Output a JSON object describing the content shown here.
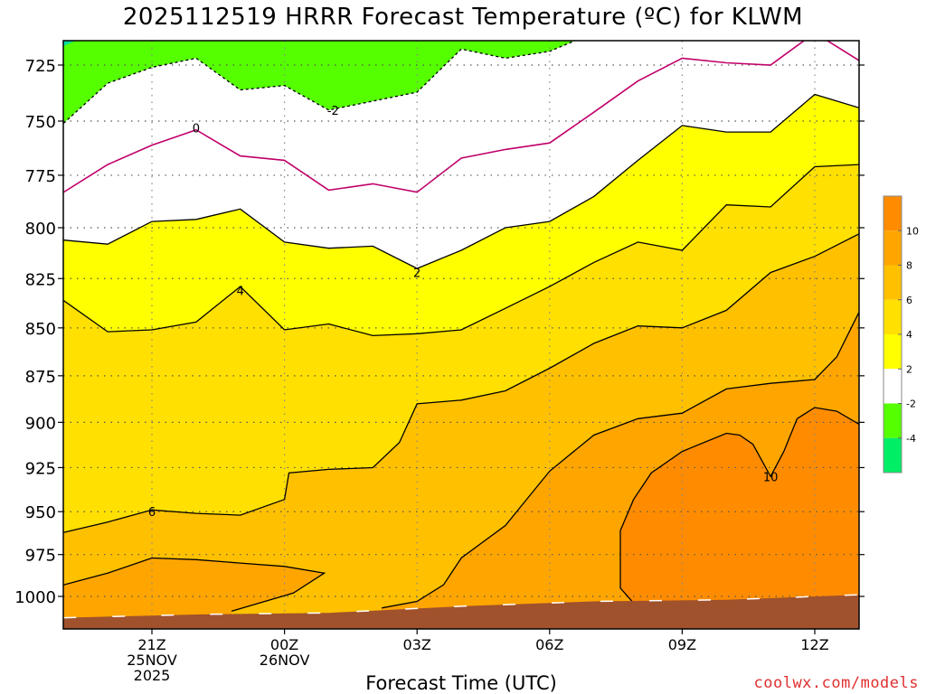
{
  "title": "2025112519 HRRR Forecast Temperature (ºC) for KLWM",
  "credit": "coolwx.com/models",
  "chart_data": {
    "type": "contour",
    "title": "2025112519 HRRR Forecast Temperature (ºC) for KLWM",
    "xlabel": "Forecast Time (UTC)",
    "ylabel": "",
    "x_ticks": [
      {
        "t": 0,
        "label": "21Z",
        "sub": [
          "25NOV",
          "2025"
        ]
      },
      {
        "t": 3,
        "label": "00Z",
        "sub": [
          "26NOV"
        ]
      },
      {
        "t": 6,
        "label": "03Z",
        "sub": []
      },
      {
        "t": 9,
        "label": "06Z",
        "sub": []
      },
      {
        "t": 12,
        "label": "09Z",
        "sub": []
      },
      {
        "t": 15,
        "label": "12Z",
        "sub": []
      }
    ],
    "x_range": [
      -2,
      16
    ],
    "y_ticks": [
      725,
      750,
      775,
      800,
      825,
      850,
      875,
      900,
      925,
      950,
      975,
      1000
    ],
    "y_range_hPa": [
      711,
      1016
    ],
    "y_scale": "log",
    "grid": "dotted",
    "ground_color": "#a0522d",
    "levels": [
      -4,
      -2,
      2,
      4,
      6,
      8,
      10
    ],
    "colorbar": {
      "labels": [
        "10",
        "8",
        "6",
        "4",
        "2",
        "-2",
        "-4"
      ],
      "colors": [
        "#ff8c00",
        "#ffa500",
        "#ffc000",
        "#ffe000",
        "#ffff00",
        "#ffffff",
        "#55ff00",
        "#00ee66"
      ]
    },
    "fills": {
      "cold": "#55ff00",
      "coldest": "#00e0a0",
      "b0_2": "#ffffff",
      "b2_4": "#ffff00",
      "b4_6": "#ffe000",
      "b6_8": "#ffc000",
      "b8_10": "#ffa500",
      "b10": "#ff8c00"
    },
    "line_color": "#000000",
    "zero_line_color": "#c0006a",
    "contours": [
      {
        "id": "minus2",
        "value": -2,
        "label": "-2",
        "label_at": {
          "t": 4.1,
          "p": 745
        },
        "points": [
          [
            -2,
            751
          ],
          [
            -1,
            733
          ],
          [
            0,
            726
          ],
          [
            1,
            722
          ],
          [
            2,
            736
          ],
          [
            3,
            734
          ],
          [
            4,
            745
          ],
          [
            5,
            741
          ],
          [
            6,
            737
          ],
          [
            7,
            718
          ],
          [
            8,
            722
          ],
          [
            9,
            719
          ],
          [
            10,
            711
          ]
        ]
      },
      {
        "id": "zero",
        "value": 0,
        "label": "0",
        "label_at": {
          "t": 1.0,
          "p": 753
        },
        "points": [
          [
            -2,
            783
          ],
          [
            -1,
            770
          ],
          [
            0,
            761
          ],
          [
            1,
            754
          ],
          [
            2,
            766
          ],
          [
            3,
            768
          ],
          [
            4,
            782
          ],
          [
            5,
            779
          ],
          [
            6,
            783
          ],
          [
            7,
            767
          ],
          [
            8,
            763
          ],
          [
            9,
            760
          ],
          [
            10,
            746
          ],
          [
            11,
            732
          ],
          [
            12,
            722
          ],
          [
            13,
            724
          ],
          [
            14,
            725
          ],
          [
            15,
            711
          ],
          [
            16,
            723
          ]
        ]
      },
      {
        "id": "two",
        "value": 2,
        "label": "2",
        "label_at": {
          "t": 6.0,
          "p": 822
        },
        "points": [
          [
            -2,
            806
          ],
          [
            -1,
            808
          ],
          [
            0,
            797
          ],
          [
            1,
            796
          ],
          [
            2,
            791
          ],
          [
            3,
            807
          ],
          [
            4,
            810
          ],
          [
            5,
            809
          ],
          [
            6,
            820
          ],
          [
            7,
            811
          ],
          [
            8,
            800
          ],
          [
            9,
            797
          ],
          [
            10,
            785
          ],
          [
            11,
            768
          ],
          [
            12,
            752
          ],
          [
            13,
            755
          ],
          [
            14,
            755
          ],
          [
            15,
            738
          ],
          [
            16,
            744
          ]
        ]
      },
      {
        "id": "four",
        "value": 4,
        "label": "4",
        "label_at": {
          "t": 2.0,
          "p": 831
        },
        "points": [
          [
            -2,
            836
          ],
          [
            -1,
            852
          ],
          [
            0,
            851
          ],
          [
            1,
            847
          ],
          [
            2,
            829
          ],
          [
            3,
            851
          ],
          [
            4,
            848
          ],
          [
            5,
            854
          ],
          [
            6,
            853
          ],
          [
            7,
            851
          ],
          [
            8,
            840
          ],
          [
            9,
            829
          ],
          [
            10,
            817
          ],
          [
            11,
            807
          ],
          [
            12,
            811
          ],
          [
            13,
            789
          ],
          [
            14,
            790
          ],
          [
            15,
            771
          ],
          [
            16,
            770
          ]
        ]
      },
      {
        "id": "six",
        "value": 6,
        "label": "6",
        "label_at": {
          "t": 0.0,
          "p": 950
        },
        "points": [
          [
            -2,
            962
          ],
          [
            -1,
            956
          ],
          [
            0,
            949
          ],
          [
            1,
            951
          ],
          [
            2,
            952
          ],
          [
            3,
            943
          ],
          [
            3.1,
            928
          ],
          [
            4,
            926
          ],
          [
            5,
            925
          ],
          [
            5.6,
            911
          ],
          [
            6,
            890
          ],
          [
            7,
            888
          ],
          [
            8,
            883
          ],
          [
            9,
            871
          ],
          [
            10,
            858
          ],
          [
            11,
            849
          ],
          [
            12,
            850
          ],
          [
            13,
            841
          ],
          [
            14,
            822
          ],
          [
            15,
            814
          ],
          [
            16,
            803
          ]
        ]
      },
      {
        "id": "eight",
        "value": 8,
        "label": "",
        "label_at": null,
        "points": [
          [
            -2,
            993
          ],
          [
            -1,
            986
          ],
          [
            0,
            977
          ],
          [
            1,
            978
          ],
          [
            2,
            980
          ],
          [
            3,
            982
          ],
          [
            3.9,
            986
          ],
          [
            3.2,
            998
          ],
          [
            1.8,
            1009
          ]
        ]
      },
      {
        "id": "eight_b",
        "value": 8,
        "label": "",
        "label_at": null,
        "points": [
          [
            5.2,
            1007
          ],
          [
            6,
            1003
          ],
          [
            6.6,
            993
          ],
          [
            7,
            977
          ],
          [
            8,
            958
          ],
          [
            9,
            927
          ],
          [
            10,
            907
          ],
          [
            11,
            898
          ],
          [
            12,
            895
          ],
          [
            13,
            882
          ],
          [
            14,
            879
          ],
          [
            15,
            877
          ],
          [
            15.5,
            865
          ],
          [
            16,
            842
          ]
        ]
      },
      {
        "id": "ten",
        "value": 10,
        "label": "10",
        "label_at": {
          "t": 14.0,
          "p": 930
        },
        "points": [
          [
            10.9,
            1004
          ],
          [
            10.6,
            995
          ],
          [
            10.6,
            961
          ],
          [
            10.9,
            943
          ],
          [
            11.3,
            928
          ],
          [
            12,
            916
          ],
          [
            13,
            906
          ],
          [
            13.3,
            907
          ],
          [
            13.6,
            912
          ],
          [
            14,
            930
          ],
          [
            14.3,
            916
          ],
          [
            14.6,
            898
          ],
          [
            15,
            892
          ],
          [
            15.5,
            894
          ],
          [
            16,
            901
          ]
        ]
      }
    ],
    "ground_surface": [
      [
        -2,
        1013
      ],
      [
        1,
        1011
      ],
      [
        4,
        1010
      ],
      [
        7,
        1006
      ],
      [
        10,
        1003
      ],
      [
        13,
        1002
      ],
      [
        16,
        999
      ]
    ]
  }
}
